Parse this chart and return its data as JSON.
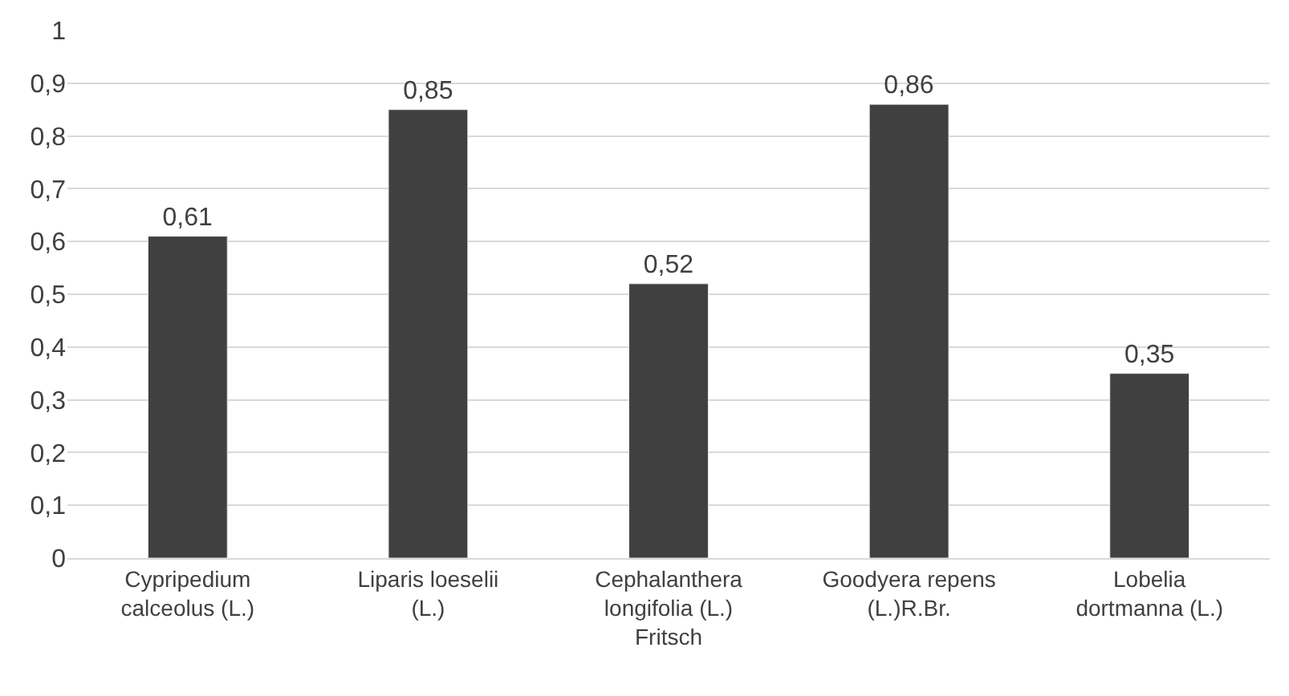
{
  "chart_data": {
    "type": "bar",
    "categories": [
      "Cypripedium calceolus (L.)",
      "Liparis loeselii (L.)",
      "Cephalanthera longifolia (L.) Fritsch",
      "Goodyera repens (L.)R.Br.",
      "Lobelia dortmanna (L.)"
    ],
    "values": [
      0.61,
      0.85,
      0.52,
      0.86,
      0.35
    ],
    "value_labels": [
      "0,61",
      "0,85",
      "0,52",
      "0,86",
      "0,35"
    ],
    "color": "#404040",
    "ylim": [
      0,
      1
    ],
    "yticks": [
      0,
      {
        "value": 0.1,
        "label": "0,1"
      },
      {
        "value": 0.2,
        "label": "0,2"
      },
      {
        "value": 0.3,
        "label": "0,3"
      },
      {
        "value": 0.4,
        "label": "0,4"
      },
      {
        "value": 0.5,
        "label": "0,5"
      },
      {
        "value": 0.6,
        "label": "0,6"
      },
      {
        "value": 0.7,
        "label": "0,7"
      },
      {
        "value": 0.8,
        "label": "0,8"
      },
      {
        "value": 0.9,
        "label": "0,9"
      },
      1
    ],
    "grid": "y",
    "legend": false
  }
}
